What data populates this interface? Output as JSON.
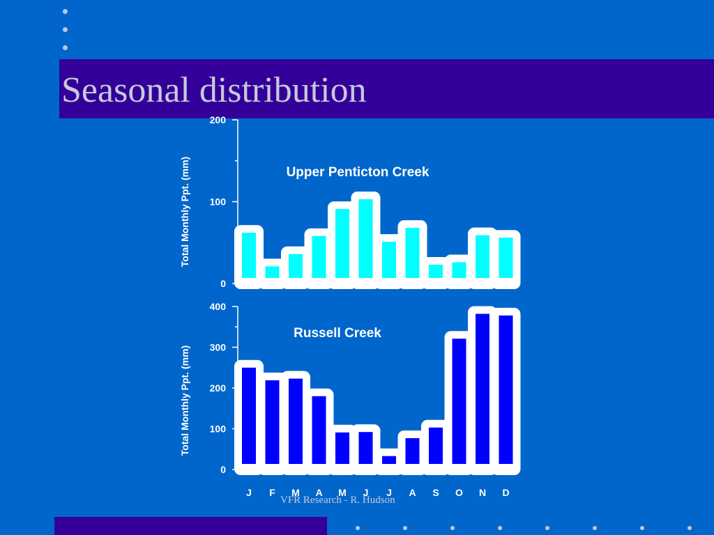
{
  "slide": {
    "title": "Seasonal distribution",
    "footer": "VFR Research - R. Hudson"
  },
  "colors": {
    "background": "#0066cc",
    "band": "#330099",
    "title_text": "#c8c8dc",
    "upper_bar": "#00ffff",
    "lower_bar": "#0000ff",
    "bar_outline": "#ffffff"
  },
  "chart_data": [
    {
      "type": "bar",
      "title": "Upper Penticton Creek",
      "ylabel": "Total Monthly Ppt. (mm)",
      "xlabel": "",
      "categories": [
        "J",
        "F",
        "M",
        "A",
        "M",
        "J",
        "J",
        "A",
        "S",
        "O",
        "N",
        "D"
      ],
      "values": [
        62,
        21,
        36,
        58,
        91,
        103,
        51,
        68,
        23,
        26,
        59,
        56
      ],
      "ylim": [
        0,
        200
      ],
      "yticks": [
        0,
        100,
        200
      ],
      "grid": false
    },
    {
      "type": "bar",
      "title": "Russell Creek",
      "ylabel": "Total Monthly Ppt. (mm)",
      "xlabel": "",
      "categories": [
        "J",
        "F",
        "M",
        "A",
        "M",
        "J",
        "J",
        "A",
        "S",
        "O",
        "N",
        "D"
      ],
      "values": [
        250,
        219,
        223,
        180,
        91,
        92,
        33,
        77,
        103,
        321,
        382,
        378
      ],
      "ylim": [
        0,
        400
      ],
      "yticks": [
        0,
        100,
        200,
        300,
        400
      ],
      "grid": false
    }
  ]
}
